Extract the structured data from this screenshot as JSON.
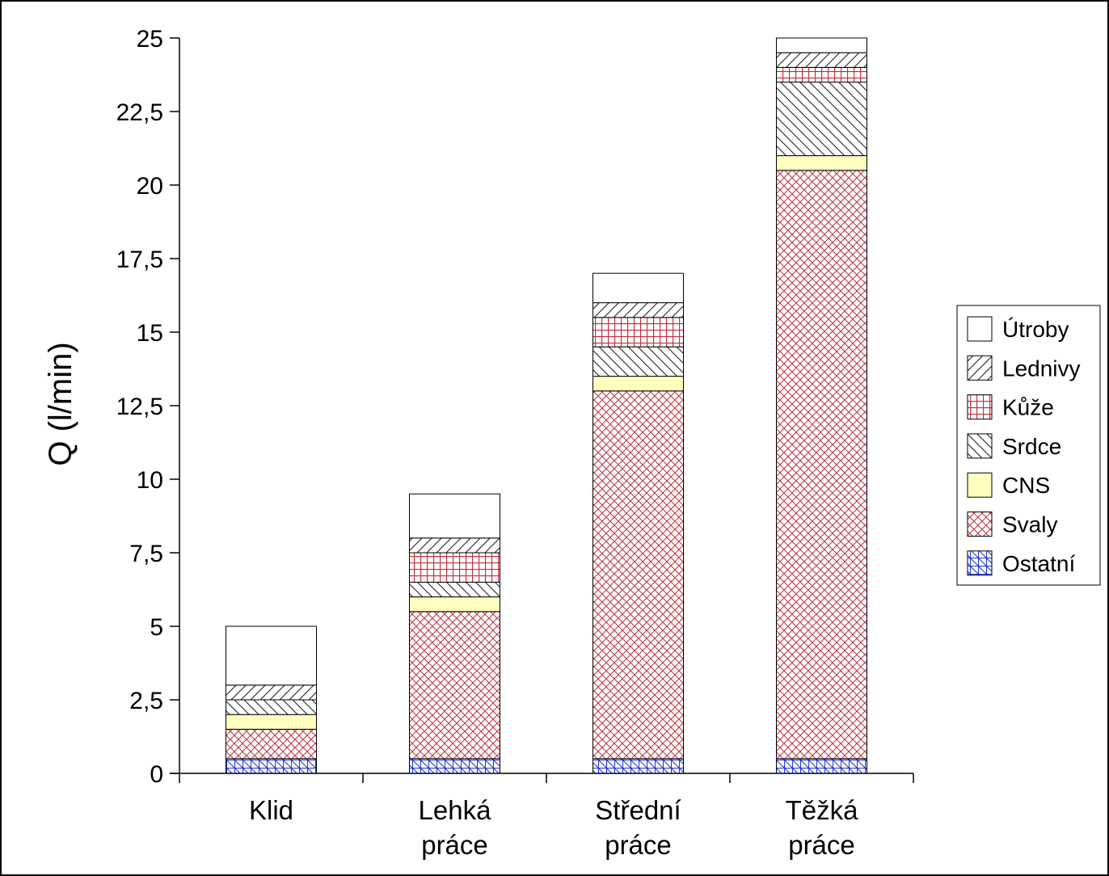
{
  "chart_data": {
    "type": "bar",
    "stacked": true,
    "title": "",
    "xlabel": "",
    "ylabel": "Q (l/min)",
    "ylim": [
      0,
      25
    ],
    "yticks": [
      "0",
      "2,5",
      "5",
      "7,5",
      "10",
      "12,5",
      "15",
      "17,5",
      "20",
      "22,5",
      "25"
    ],
    "grid": false,
    "legend_position": "right",
    "categories": [
      [
        "Klid"
      ],
      [
        "Lehká",
        "práce"
      ],
      [
        "Střední",
        "práce"
      ],
      [
        "Těžká",
        "práce"
      ]
    ],
    "series": [
      {
        "name": "Ostatní",
        "values": [
          0.5,
          0.5,
          0.5,
          0.5
        ],
        "color": "#2233dd",
        "pattern": "blue-cross"
      },
      {
        "name": "Svaly",
        "values": [
          1.0,
          5.0,
          12.5,
          20.0
        ],
        "color": "#c03040",
        "pattern": "red-diagonal-cross"
      },
      {
        "name": "CNS",
        "values": [
          0.5,
          0.5,
          0.5,
          0.5
        ],
        "color": "#ffffc0",
        "pattern": "solid"
      },
      {
        "name": "Srdce",
        "values": [
          0.5,
          0.5,
          1.0,
          2.5
        ],
        "color": "#000000",
        "pattern": "backslash"
      },
      {
        "name": "Kůže",
        "values": [
          0.0,
          1.0,
          1.0,
          0.5
        ],
        "color": "#c03040",
        "pattern": "red-grid"
      },
      {
        "name": "Lednivy",
        "values": [
          0.5,
          0.5,
          0.5,
          0.5
        ],
        "color": "#000000",
        "pattern": "forward-slash"
      },
      {
        "name": "Útroby",
        "values": [
          2.0,
          1.5,
          1.0,
          0.5
        ],
        "color": "#ffffff",
        "pattern": "solid"
      }
    ],
    "legend_order": [
      "Útroby",
      "Lednivy",
      "Kůže",
      "Srdce",
      "CNS",
      "Svaly",
      "Ostatní"
    ]
  }
}
